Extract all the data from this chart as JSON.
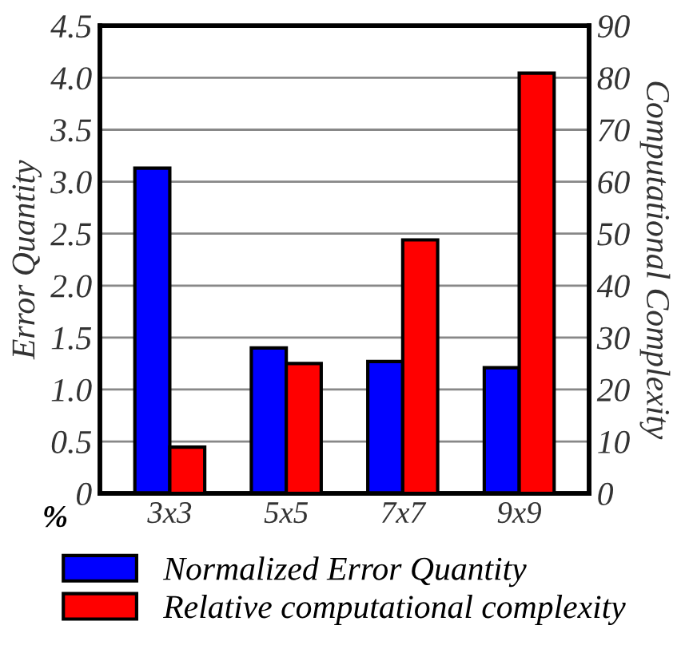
{
  "chart_data": {
    "type": "bar",
    "categories": [
      "3x3",
      "5x5",
      "7x7",
      "9x9"
    ],
    "series": [
      {
        "name": "Normalized Error Quantity",
        "color": "#0000ff",
        "values": [
          3.13,
          1.4,
          1.27,
          1.21
        ]
      },
      {
        "name": "Relative computational complexity",
        "color": "#ff0000",
        "values": [
          8.9,
          25,
          48.8,
          80.9
        ],
        "axis": "y2"
      }
    ],
    "ylabel": "Error Quantity",
    "y2label": "Computational Complexity",
    "ylim": [
      0,
      4.5
    ],
    "yticks": [
      0,
      0.5,
      {
        "value": 1,
        "label": "1.0"
      },
      1.5,
      {
        "value": 2,
        "label": "2.0"
      },
      2.5,
      {
        "value": 3,
        "label": "3.0"
      },
      3.5,
      {
        "value": 4,
        "label": "4.0"
      },
      4.5
    ],
    "y2lim": [
      0,
      90
    ],
    "y2ticks": [
      0,
      10,
      20,
      30,
      40,
      50,
      60,
      70,
      80,
      90
    ],
    "annotations": [
      "%"
    ],
    "grid": "y",
    "legend": "bottom"
  }
}
